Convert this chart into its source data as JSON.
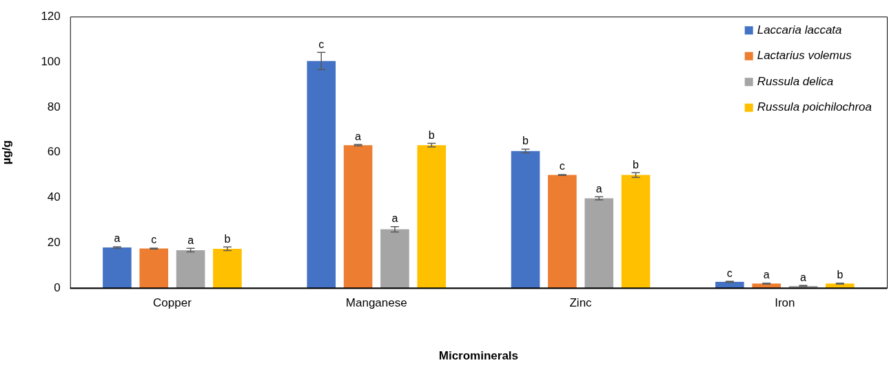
{
  "chart_data": {
    "type": "bar",
    "xlabel": "Microminerals",
    "ylabel": "µg/g",
    "categories": [
      "Copper",
      "Manganese",
      "Zinc",
      "Iron"
    ],
    "ylim": [
      0,
      120
    ],
    "yticks": [
      0,
      20,
      40,
      60,
      80,
      100,
      120
    ],
    "grid": false,
    "legend": "top right",
    "series": [
      {
        "name": "Laccaria laccata",
        "color": "#4472c4",
        "values": [
          18,
          100.4,
          60.6,
          2.8
        ],
        "errors": [
          0.3,
          3.8,
          0.8,
          0.2
        ],
        "value_labels": [
          "a",
          "c",
          "b",
          "c"
        ]
      },
      {
        "name": "Lactarius volemus",
        "color": "#ed7d31",
        "values": [
          17.5,
          63.2,
          50,
          2
        ],
        "errors": [
          0.2,
          0.3,
          0.2,
          0.2
        ],
        "value_labels": [
          "c",
          "a",
          "c",
          "a"
        ]
      },
      {
        "name": "Russula delica",
        "color": "#a5a5a5",
        "values": [
          16.8,
          26,
          39.7,
          1
        ],
        "errors": [
          0.8,
          1.2,
          0.7,
          0.2
        ],
        "value_labels": [
          "a",
          "a",
          "a",
          "a"
        ]
      },
      {
        "name": "Russula poichilochroa",
        "color": "#ffc000",
        "values": [
          17.4,
          63.2,
          50,
          2
        ],
        "errors": [
          0.8,
          0.8,
          1,
          0.2
        ],
        "value_labels": [
          "b",
          "b",
          "b",
          "b"
        ]
      }
    ]
  }
}
